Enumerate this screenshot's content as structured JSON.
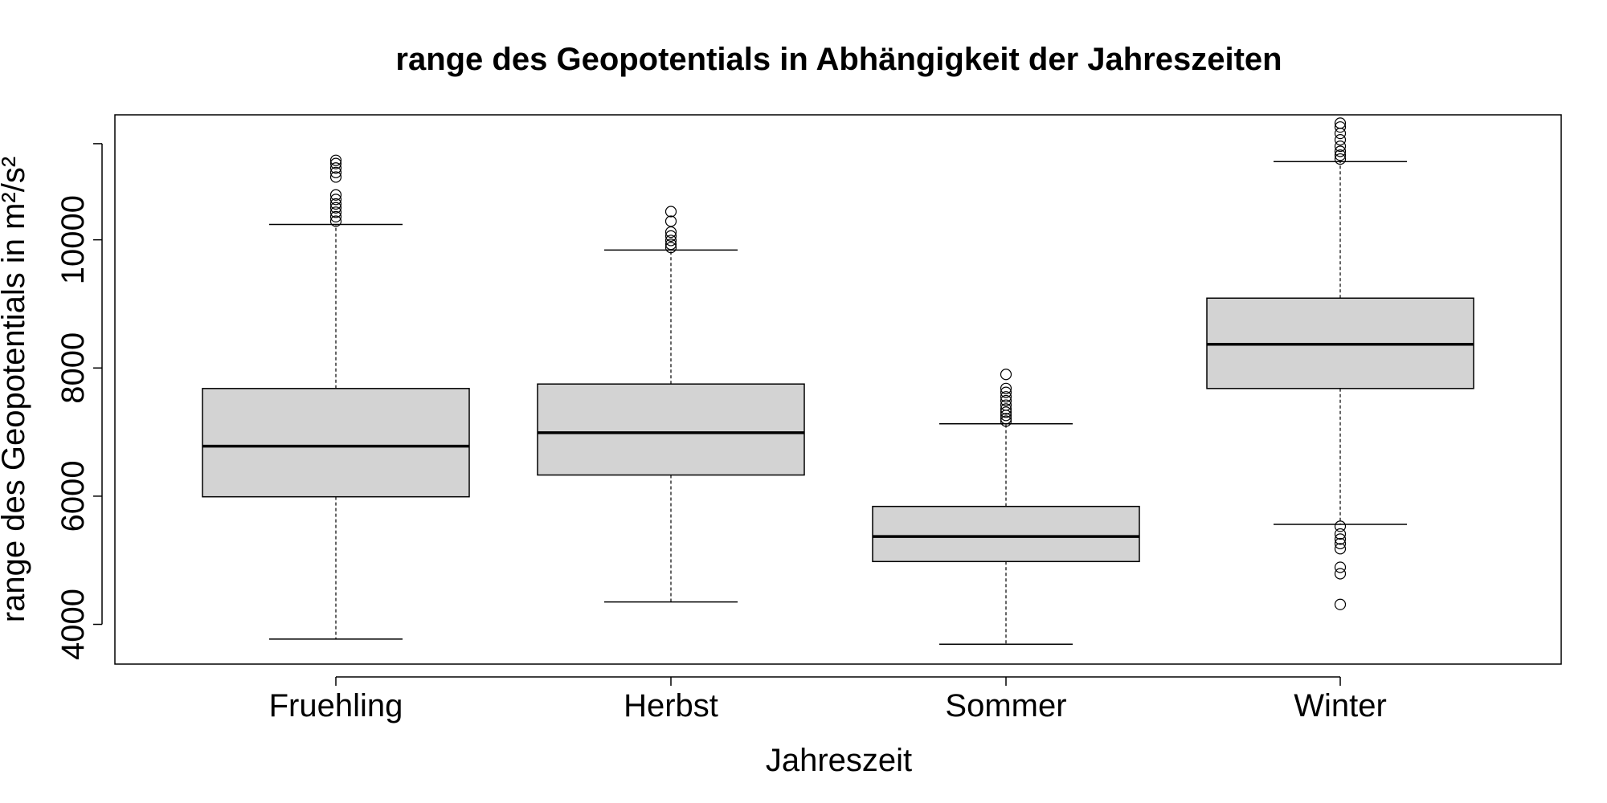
{
  "chart_data": {
    "type": "boxplot",
    "title": "range des Geopotentials in Abhängigkeit der Jahreszeiten",
    "xlabel": "Jahreszeit",
    "ylabel": "range des Geopotentials in m²/s²",
    "ylim": [
      3380,
      11950
    ],
    "yticks": [
      4000,
      6000,
      8000,
      10000
    ],
    "ytick_labels": [
      "4000",
      "6000",
      "8000",
      "10000"
    ],
    "box_fill": "#d3d3d3",
    "categories": [
      "Fruehling",
      "Herbst",
      "Sommer",
      "Winter"
    ],
    "boxes": [
      {
        "category": "Fruehling",
        "whisker_low": 3770,
        "q1": 5990,
        "median": 6780,
        "q3": 7680,
        "whisker_high": 10240,
        "outliers": [
          10290,
          10360,
          10430,
          10500,
          10560,
          10630,
          10700,
          10980,
          11050,
          11120,
          11190,
          11240
        ]
      },
      {
        "category": "Herbst",
        "whisker_low": 4350,
        "q1": 6330,
        "median": 6990,
        "q3": 7750,
        "whisker_high": 9840,
        "outliers": [
          9880,
          9930,
          9990,
          10060,
          10120,
          10290,
          10440
        ]
      },
      {
        "category": "Sommer",
        "whisker_low": 3690,
        "q1": 4980,
        "median": 5370,
        "q3": 5840,
        "whisker_high": 7130,
        "outliers": [
          7170,
          7210,
          7260,
          7310,
          7360,
          7420,
          7490,
          7550,
          7620,
          7680,
          7900
        ]
      },
      {
        "category": "Winter",
        "whisker_low": 5560,
        "q1": 7680,
        "median": 8370,
        "q3": 9090,
        "whisker_high": 11220,
        "outliers": [
          5530,
          5410,
          5330,
          5260,
          5180,
          4890,
          4790,
          4310,
          11260,
          11320,
          11380,
          11460,
          11560,
          11660,
          11760,
          11820
        ]
      }
    ]
  }
}
